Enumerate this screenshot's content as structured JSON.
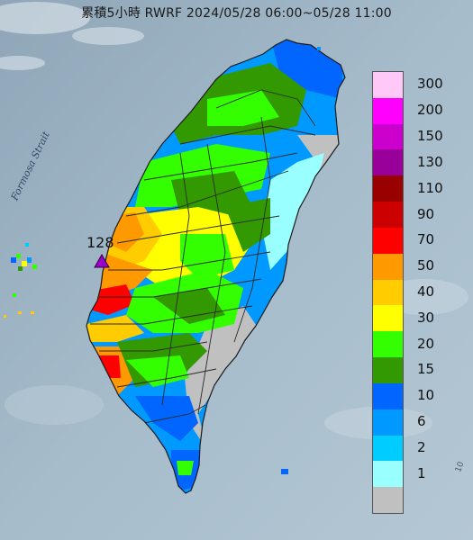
{
  "map": {
    "title": "累積5小時 RWRF 2024/05/28 06:00~05/28 11:00",
    "strait_label": "Formosa Strait",
    "max_label": "128",
    "corner_text": "10"
  },
  "legend": {
    "items": [
      {
        "label": "300",
        "color": "#ffc8f6"
      },
      {
        "label": "200",
        "color": "#ff00ff"
      },
      {
        "label": "150",
        "color": "#cc00cc"
      },
      {
        "label": "130",
        "color": "#990099"
      },
      {
        "label": "110",
        "color": "#990000"
      },
      {
        "label": "90",
        "color": "#cc0000"
      },
      {
        "label": "70",
        "color": "#ff0000"
      },
      {
        "label": "50",
        "color": "#ff9900"
      },
      {
        "label": "40",
        "color": "#ffcc00"
      },
      {
        "label": "30",
        "color": "#ffff00"
      },
      {
        "label": "20",
        "color": "#33ff00"
      },
      {
        "label": "15",
        "color": "#339900"
      },
      {
        "label": "10",
        "color": "#0066ff"
      },
      {
        "label": "6",
        "color": "#0099ff"
      },
      {
        "label": "2",
        "color": "#00ccff"
      },
      {
        "label": "1",
        "color": "#99ffff"
      },
      {
        "label": "",
        "color": "#c0c0c0"
      }
    ]
  },
  "colors": {
    "sea": "#9fb4c4",
    "land_dry": "#c0c0c0",
    "max_marker": "#9900cc"
  },
  "icons": {
    "max_marker": "triangle-icon"
  }
}
